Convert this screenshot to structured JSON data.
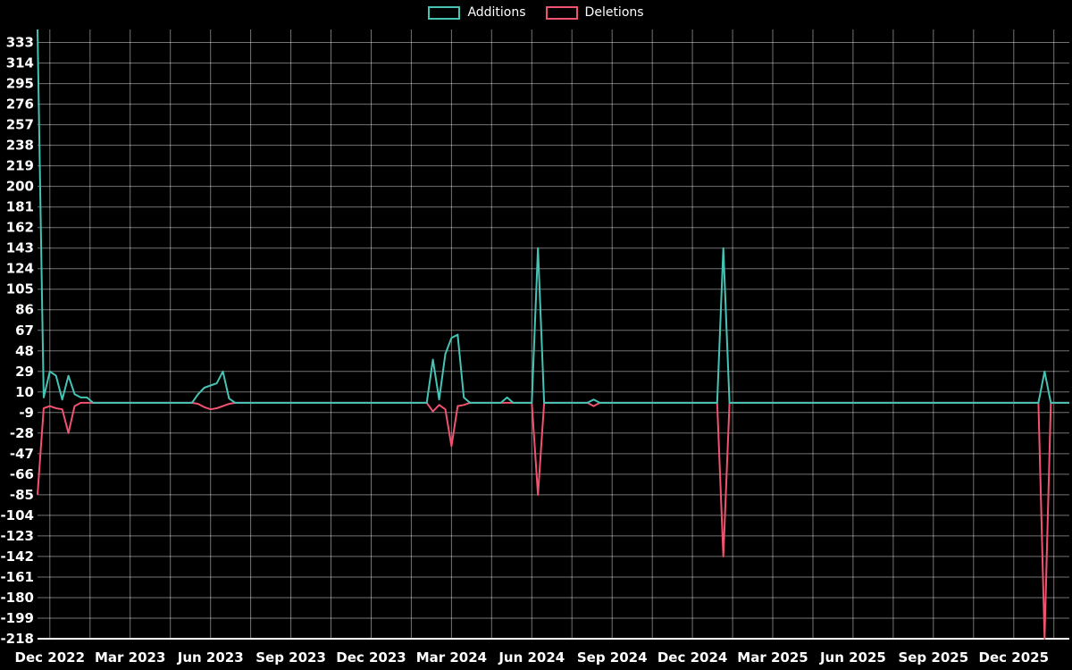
{
  "legend": {
    "items": [
      {
        "label": "Additions",
        "color": "#45c4b5"
      },
      {
        "label": "Deletions",
        "color": "#f0536f"
      }
    ]
  },
  "chart_data": {
    "type": "line",
    "title": "",
    "xlabel": "",
    "ylabel": "",
    "grid": true,
    "legend_position": "top-center",
    "background_color": "#000000",
    "y_range": [
      -218,
      345
    ],
    "y_ticks": [
      333,
      314,
      295,
      276,
      257,
      238,
      219,
      200,
      181,
      162,
      143,
      124,
      105,
      86,
      67,
      48,
      29,
      10,
      -9,
      -28,
      -47,
      -66,
      -85,
      -104,
      -123,
      -142,
      -161,
      -180,
      -199,
      -218
    ],
    "x_tick_labels": [
      "Dec 2022",
      "Mar 2023",
      "Jun 2023",
      "Sep 2023",
      "Dec 2023",
      "Mar 2024",
      "Jun 2024",
      "Sep 2024",
      "Dec 2024",
      "Mar 2025",
      "Jun 2025",
      "Sep 2025",
      "Dec 2025"
    ],
    "x_tick_weeks": [
      2,
      15,
      28,
      41,
      54,
      67,
      80,
      93,
      106,
      119,
      132,
      145,
      158
    ],
    "weeks_total": 168,
    "series": [
      {
        "name": "Additions",
        "color": "#45c4b5",
        "default_value": 0,
        "points": [
          [
            0,
            345
          ],
          [
            1,
            5
          ],
          [
            2,
            29
          ],
          [
            3,
            25
          ],
          [
            4,
            3
          ],
          [
            5,
            25
          ],
          [
            6,
            8
          ],
          [
            7,
            5
          ],
          [
            8,
            5
          ],
          [
            26,
            8
          ],
          [
            27,
            14
          ],
          [
            28,
            16
          ],
          [
            29,
            18
          ],
          [
            30,
            29
          ],
          [
            31,
            4
          ],
          [
            64,
            40
          ],
          [
            65,
            3
          ],
          [
            66,
            45
          ],
          [
            67,
            60
          ],
          [
            68,
            63
          ],
          [
            69,
            5
          ],
          [
            76,
            5
          ],
          [
            81,
            143
          ],
          [
            90,
            3
          ],
          [
            111,
            143
          ],
          [
            163,
            29
          ]
        ]
      },
      {
        "name": "Deletions",
        "color": "#f0536f",
        "default_value": 0,
        "points": [
          [
            0,
            -85
          ],
          [
            1,
            -5
          ],
          [
            2,
            -3
          ],
          [
            3,
            -5
          ],
          [
            4,
            -6
          ],
          [
            5,
            -28
          ],
          [
            6,
            -3
          ],
          [
            26,
            -1
          ],
          [
            27,
            -4
          ],
          [
            28,
            -6
          ],
          [
            29,
            -5
          ],
          [
            30,
            -3
          ],
          [
            31,
            -1
          ],
          [
            64,
            -8
          ],
          [
            65,
            -2
          ],
          [
            66,
            -6
          ],
          [
            67,
            -40
          ],
          [
            68,
            -3
          ],
          [
            69,
            -2
          ],
          [
            81,
            -85
          ],
          [
            90,
            -3
          ],
          [
            111,
            -142
          ],
          [
            163,
            -218
          ]
        ]
      }
    ]
  }
}
